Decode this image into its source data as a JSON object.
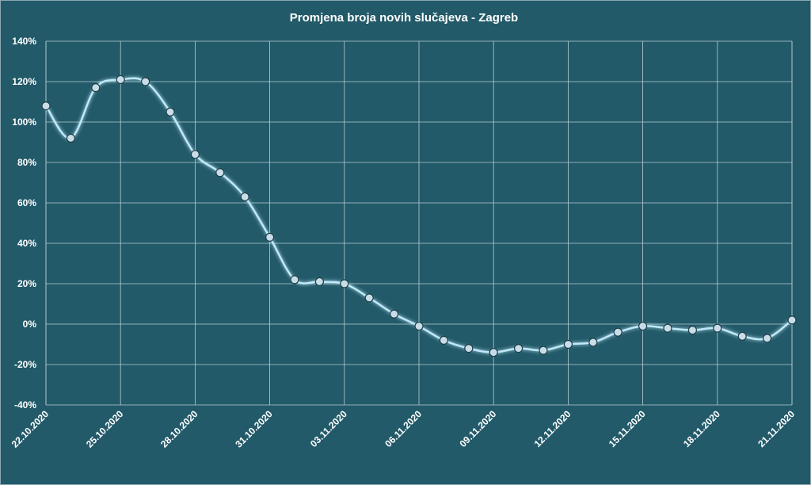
{
  "chart_data": {
    "type": "line",
    "title": "Promjena broja novih slučajeva - Zagreb",
    "xlabel": "",
    "ylabel": "",
    "ylim": [
      -40,
      140
    ],
    "yticks": [
      "140%",
      "120%",
      "100%",
      "80%",
      "60%",
      "40%",
      "20%",
      "0%",
      "-20%",
      "-40%"
    ],
    "ytick_values": [
      140,
      120,
      100,
      80,
      60,
      40,
      20,
      0,
      -20,
      -40
    ],
    "y_unit": "%",
    "grid": true,
    "x": [
      "22.10.2020",
      "23.10.2020",
      "24.10.2020",
      "25.10.2020",
      "26.10.2020",
      "27.10.2020",
      "28.10.2020",
      "29.10.2020",
      "30.10.2020",
      "31.10.2020",
      "01.11.2020",
      "02.11.2020",
      "03.11.2020",
      "04.11.2020",
      "05.11.2020",
      "06.11.2020",
      "07.11.2020",
      "08.11.2020",
      "09.11.2020",
      "10.11.2020",
      "11.11.2020",
      "12.11.2020",
      "13.11.2020",
      "14.11.2020",
      "15.11.2020",
      "16.11.2020",
      "17.11.2020",
      "18.11.2020",
      "19.11.2020",
      "20.11.2020",
      "21.11.2020"
    ],
    "xticks": [
      "22.10.2020",
      "25.10.2020",
      "28.10.2020",
      "31.10.2020",
      "03.11.2020",
      "06.11.2020",
      "09.11.2020",
      "12.11.2020",
      "15.11.2020",
      "18.11.2020",
      "21.11.2020"
    ],
    "series": [
      {
        "values": [
          108,
          92,
          117,
          121,
          120,
          105,
          84,
          75,
          63,
          43,
          22,
          21,
          20,
          13,
          5,
          -1,
          -8,
          -12,
          -14,
          -12,
          -13,
          -10,
          -9,
          -4,
          -1,
          -2,
          -3,
          -2,
          -6,
          -7,
          2
        ]
      }
    ],
    "colors": {
      "background": "#225a69",
      "line": "#bfe8f8",
      "marker_fill": "#c9dde8",
      "marker_stroke": "#1c3e48",
      "grid": "#b8cdd3"
    }
  }
}
